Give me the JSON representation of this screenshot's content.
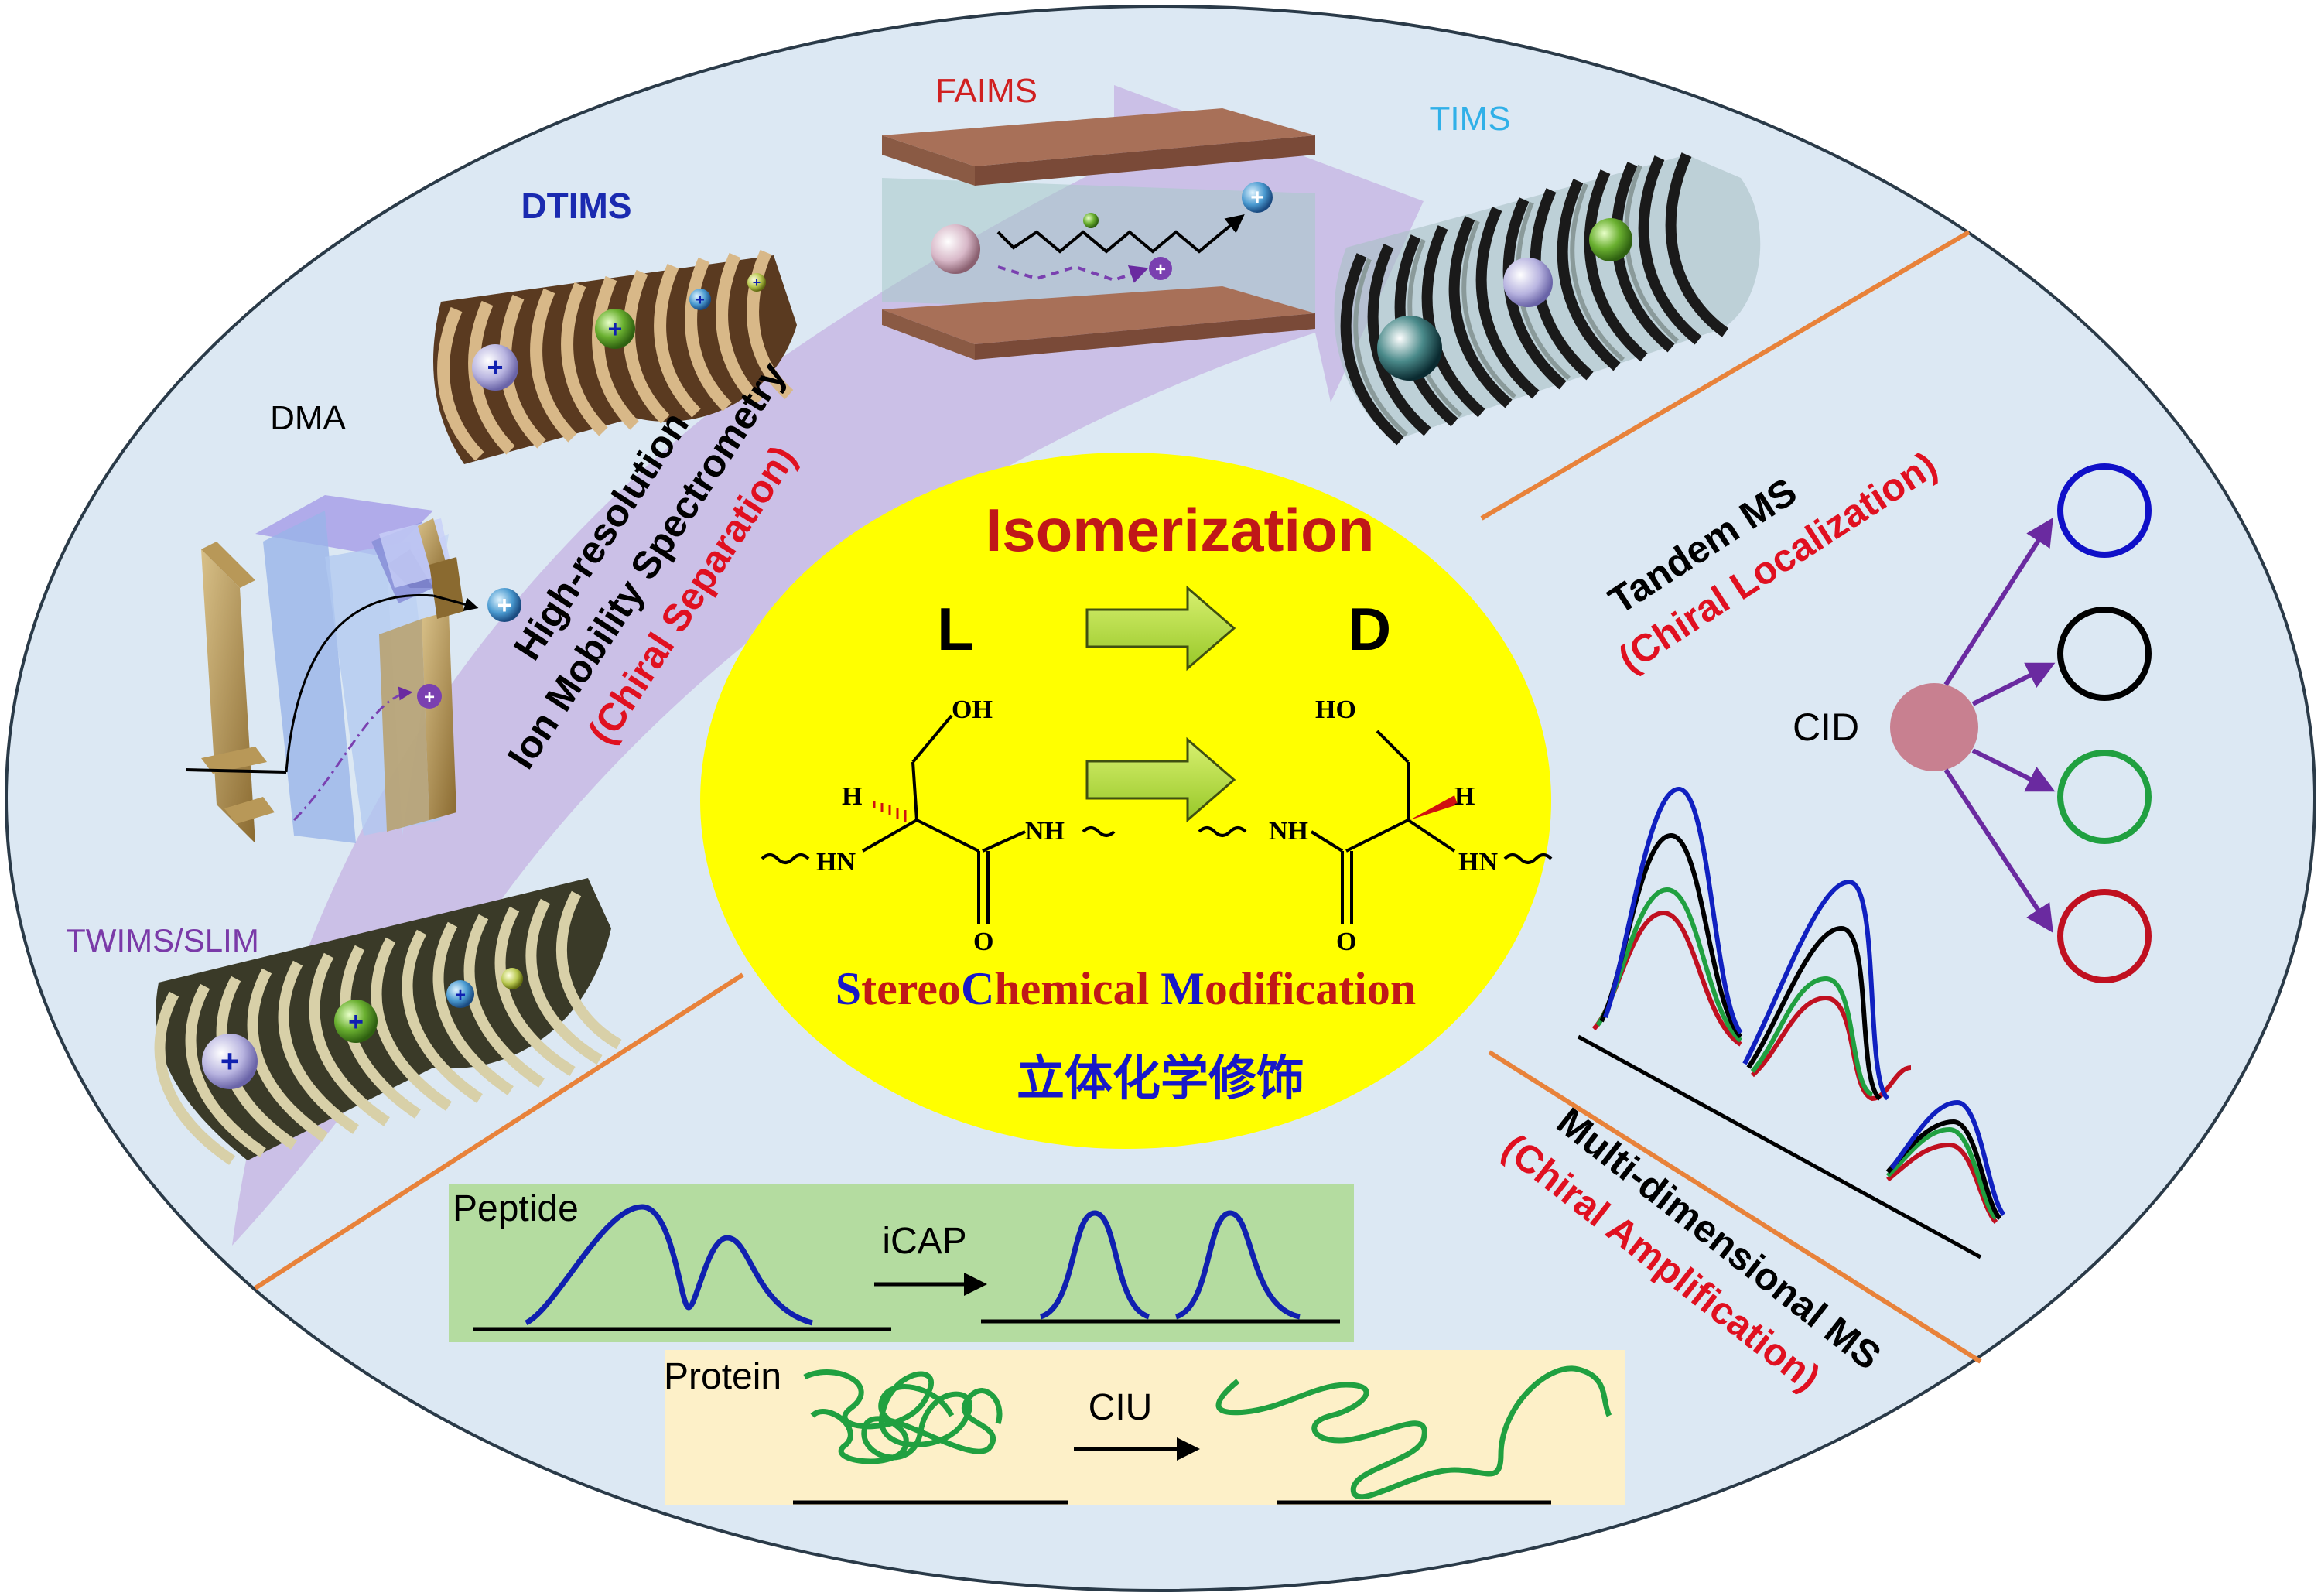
{
  "colors": {
    "background_ellipse": "#dce8f3",
    "center_circle": "#ffff00",
    "divider": "#e8823a",
    "arrow_band": "#c8b8e4",
    "curve_blue": "#1020b0",
    "curve_green": "#20a040",
    "peptide_box": "#b4dca0",
    "protein_box": "#fdf0c8"
  },
  "devices": {
    "dma": "DMA",
    "dtims": "DTIMS",
    "faims": "FAIMS",
    "tims": "TIMS",
    "twims": "TWIMS/SLIM"
  },
  "imms_band": {
    "line1": "High-resolution",
    "line2": "Ion Mobility Spectrometry",
    "line3": "(Chiral Separation)"
  },
  "center": {
    "title": "Isomerization",
    "left_label": "L",
    "right_label": "D",
    "left_structure": {
      "oh": "OH",
      "h": "H",
      "hn": "HN",
      "nh": "NH",
      "o": "O"
    },
    "right_structure": {
      "ho": "HO",
      "h": "H",
      "nh": "NH",
      "hn": "HN",
      "o": "O"
    },
    "scm": {
      "s": "S",
      "tereo": "tereo",
      "c": "C",
      "hemical": "hemical ",
      "m": "M",
      "odification": "odification"
    },
    "chinese": "立体化学修饰"
  },
  "tandem": {
    "title": "Tandem MS",
    "subtitle": "(Chiral Localization)",
    "cid": "CID",
    "fragment_colors": [
      "#1010c8",
      "#000000",
      "#20a040",
      "#c01020"
    ]
  },
  "multidim": {
    "title": "Multi-dimensional MS",
    "subtitle": "(Chiral Amplification)",
    "series_colors": [
      "#c01020",
      "#20a040",
      "#000000",
      "#1020c0"
    ]
  },
  "peptide": {
    "label": "Peptide",
    "method": "iCAP"
  },
  "protein": {
    "label": "Protein",
    "method": "CIU"
  }
}
